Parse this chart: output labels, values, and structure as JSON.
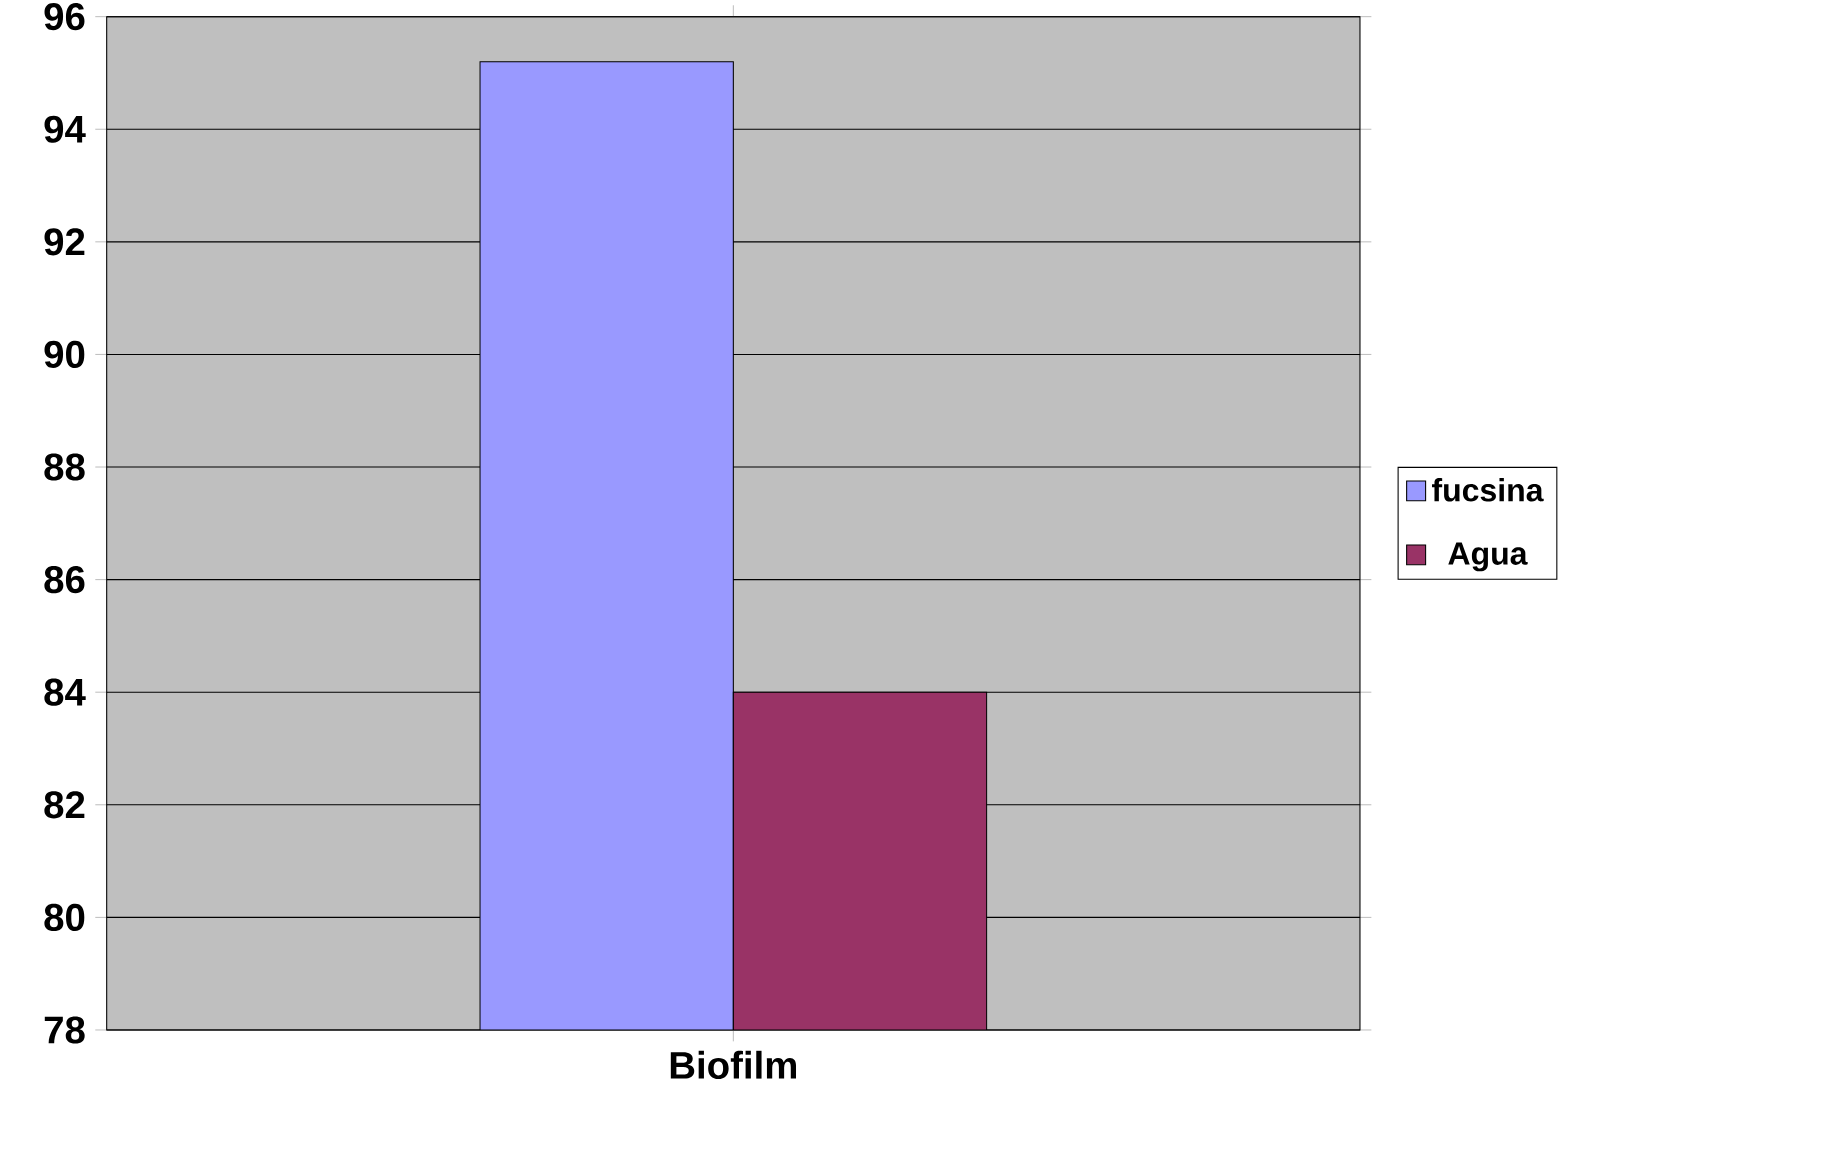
{
  "chart_data": {
    "type": "bar",
    "categories": [
      "Biofilm"
    ],
    "series": [
      {
        "name": "fucsina",
        "color": "#9999ff",
        "values": [
          95.2
        ]
      },
      {
        "name": "Agua",
        "color": "#993366",
        "values": [
          84.0
        ]
      }
    ],
    "ylim": [
      78,
      96
    ],
    "yticks": [
      78,
      80,
      82,
      84,
      86,
      88,
      90,
      92,
      94,
      96
    ],
    "grid": "y",
    "legend": "right"
  }
}
